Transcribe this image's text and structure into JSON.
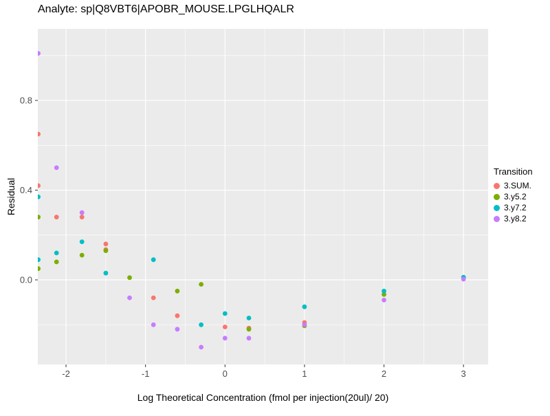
{
  "chart_data": {
    "type": "scatter",
    "title": "Analyte: sp|Q8VBT6|APOBR_MOUSE.LPGLHQALR",
    "xlabel": "Log Theoretical Concentration (fmol per injection(20ul)/ 20)",
    "ylabel": "Residual",
    "legend_title": "Transition",
    "xlim": [
      -2.355,
      3.31
    ],
    "ylim": [
      -0.377,
      1.119
    ],
    "x_ticks": [
      -2,
      -1,
      0,
      1,
      2,
      3
    ],
    "x_tick_labels": [
      "-2",
      "-1",
      "0",
      "1",
      "2",
      "3"
    ],
    "y_ticks": [
      0.0,
      0.4,
      0.8
    ],
    "y_tick_labels": [
      "0.0",
      "0.4",
      "0.8"
    ],
    "panel_bg": "#EBEBEB",
    "grid_color": "#FFFFFF",
    "tick_text_color": "#4D4D4D",
    "tick_mark_color": "#333333",
    "series": [
      {
        "name": "3.SUM.",
        "color": "#F8766D",
        "points": [
          [
            -2.35,
            0.65
          ],
          [
            -2.35,
            0.42
          ],
          [
            -2.12,
            0.28
          ],
          [
            -1.8,
            0.28
          ],
          [
            -1.5,
            0.16
          ],
          [
            -1.5,
            0.135
          ],
          [
            -0.9,
            -0.08
          ],
          [
            -0.6,
            -0.16
          ],
          [
            0.0,
            -0.21
          ],
          [
            0.3,
            -0.215
          ],
          [
            1.0,
            -0.19
          ]
        ]
      },
      {
        "name": "3.y5.2",
        "color": "#7CAE00",
        "points": [
          [
            -2.35,
            0.28
          ],
          [
            -2.35,
            0.05
          ],
          [
            -2.12,
            0.08
          ],
          [
            -1.8,
            0.11
          ],
          [
            -1.5,
            0.13
          ],
          [
            -1.2,
            0.01
          ],
          [
            -0.6,
            -0.05
          ],
          [
            -0.3,
            -0.02
          ],
          [
            0.3,
            -0.22
          ],
          [
            1.0,
            -0.205
          ],
          [
            2.0,
            -0.065
          ]
        ]
      },
      {
        "name": "3.y7.2",
        "color": "#00BFC4",
        "points": [
          [
            -2.35,
            0.37
          ],
          [
            -2.35,
            0.09
          ],
          [
            -2.12,
            0.12
          ],
          [
            -1.8,
            0.17
          ],
          [
            -1.5,
            0.03
          ],
          [
            -0.9,
            0.09
          ],
          [
            -0.3,
            -0.2
          ],
          [
            0.0,
            -0.15
          ],
          [
            0.3,
            -0.17
          ],
          [
            1.0,
            -0.12
          ],
          [
            2.0,
            -0.05
          ],
          [
            3.0,
            0.012
          ]
        ]
      },
      {
        "name": "3.y8.2",
        "color": "#C77CFF",
        "points": [
          [
            -2.35,
            1.01
          ],
          [
            -2.12,
            0.5
          ],
          [
            -1.8,
            0.3
          ],
          [
            -1.2,
            -0.08
          ],
          [
            -0.9,
            -0.2
          ],
          [
            -0.6,
            -0.22
          ],
          [
            -0.3,
            -0.3
          ],
          [
            0.0,
            -0.26
          ],
          [
            0.3,
            -0.26
          ],
          [
            1.0,
            -0.2
          ],
          [
            2.0,
            -0.09
          ],
          [
            3.0,
            0.003
          ]
        ]
      }
    ]
  }
}
